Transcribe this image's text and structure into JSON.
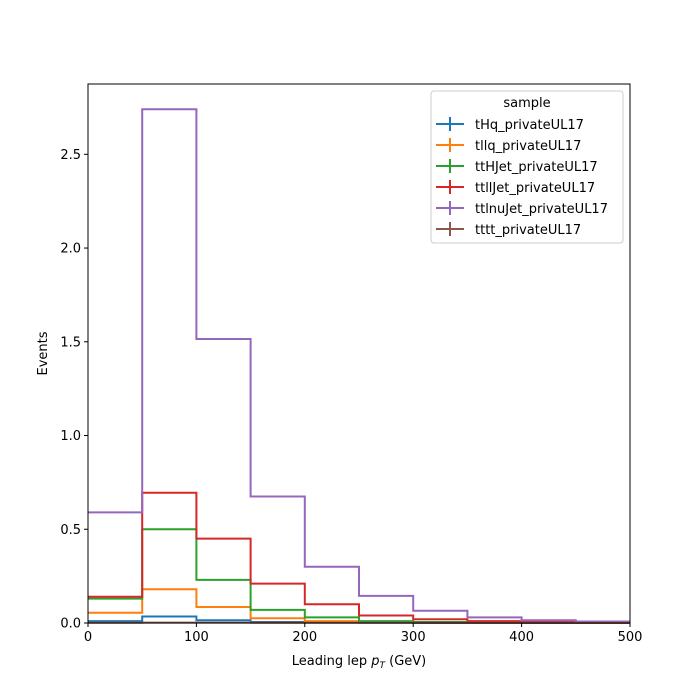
{
  "chart_data": {
    "type": "step-histogram",
    "xlabel_main": "Leading lep ",
    "xlabel_var": "p",
    "xlabel_sub": "T",
    "xlabel_unit": " (GeV)",
    "ylabel": "Events",
    "xlim": [
      0,
      500
    ],
    "ylim": [
      0,
      2.875
    ],
    "xticks": [
      0,
      100,
      200,
      300,
      400,
      500
    ],
    "yticks": [
      0.0,
      0.5,
      1.0,
      1.5,
      2.0,
      2.5
    ],
    "xtick_labels": [
      "0",
      "100",
      "200",
      "300",
      "400",
      "500"
    ],
    "ytick_labels": [
      "0.0",
      "0.5",
      "1.0",
      "1.5",
      "2.0",
      "2.5"
    ],
    "bin_edges": [
      0,
      50,
      100,
      150,
      200,
      250,
      300,
      350,
      400,
      450,
      500
    ],
    "legend_title": "sample",
    "legend_position": "top-right",
    "grid": false,
    "series": [
      {
        "name": "tHq_privateUL17",
        "color": "#1f77b4",
        "values": [
          0.01,
          0.035,
          0.015,
          0.005,
          0.003,
          0.002,
          0.001,
          0.001,
          0.0005,
          0.0005
        ]
      },
      {
        "name": "tllq_privateUL17",
        "color": "#ff7f0e",
        "values": [
          0.055,
          0.18,
          0.085,
          0.025,
          0.01,
          0.005,
          0.003,
          0.002,
          0.001,
          0.001
        ]
      },
      {
        "name": "ttHJet_privateUL17",
        "color": "#2ca02c",
        "values": [
          0.13,
          0.5,
          0.23,
          0.07,
          0.03,
          0.01,
          0.005,
          0.003,
          0.002,
          0.001
        ]
      },
      {
        "name": "ttllJet_privateUL17",
        "color": "#d62728",
        "values": [
          0.14,
          0.695,
          0.45,
          0.21,
          0.1,
          0.04,
          0.02,
          0.01,
          0.005,
          0.003
        ]
      },
      {
        "name": "ttlnuJet_privateUL17",
        "color": "#9467bd",
        "values": [
          0.59,
          2.74,
          1.515,
          0.675,
          0.3,
          0.145,
          0.065,
          0.03,
          0.015,
          0.008
        ]
      },
      {
        "name": "tttt_privateUL17",
        "color": "#8c564b",
        "values": [
          0.001,
          0.002,
          0.002,
          0.001,
          0.001,
          0.001,
          0.0005,
          0.0005,
          0.0003,
          0.0002
        ]
      }
    ]
  }
}
